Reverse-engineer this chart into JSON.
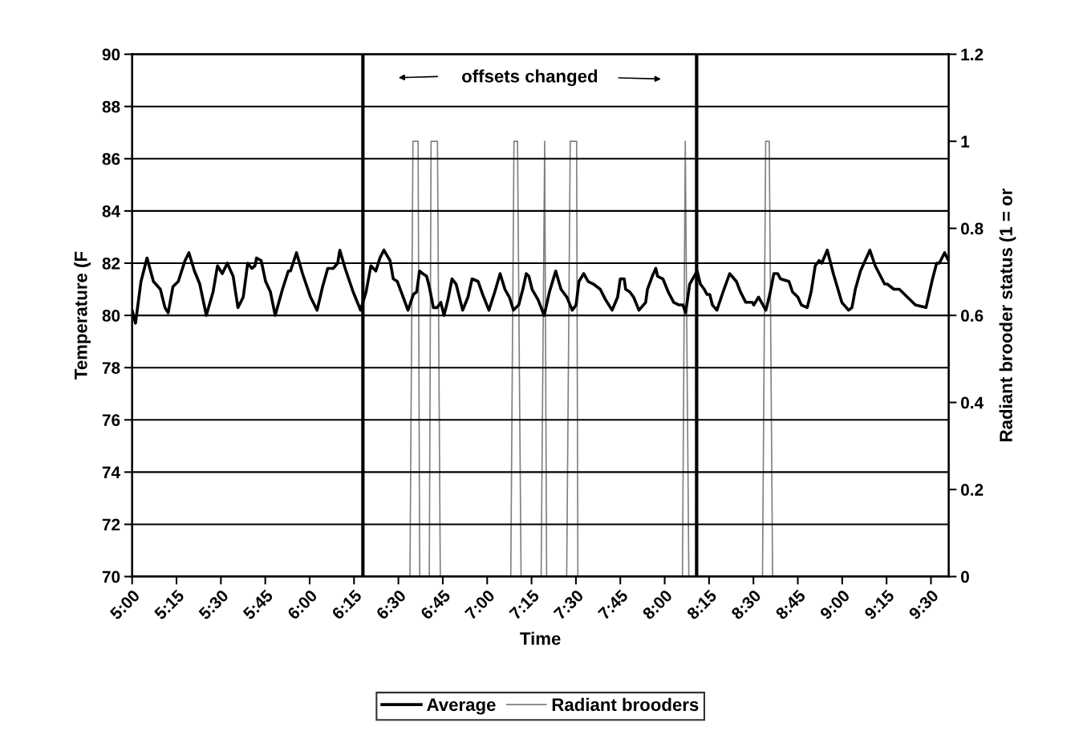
{
  "chart_data": {
    "type": "line",
    "xlabel": "Time",
    "ylabel": "Temperature (F",
    "y2label": "Radiant brooder status (1 = or",
    "annotations": [
      "offsets changed"
    ],
    "xlim": [
      5.0,
      9.6
    ],
    "ylim": [
      70,
      90
    ],
    "yticks": [
      70,
      72,
      74,
      76,
      78,
      80,
      82,
      84,
      86,
      88,
      90
    ],
    "y2lim": [
      0,
      1.2
    ],
    "y2ticks": [
      0,
      0.2,
      0.4,
      0.6,
      0.8,
      1,
      1.2
    ],
    "xticks": [
      {
        "value": 5.0,
        "label": "5:00"
      },
      {
        "value": 5.25,
        "label": "5:15"
      },
      {
        "value": 5.5,
        "label": "5:30"
      },
      {
        "value": 5.75,
        "label": "5:45"
      },
      {
        "value": 6.0,
        "label": "6:00"
      },
      {
        "value": 6.25,
        "label": "6:15"
      },
      {
        "value": 6.5,
        "label": "6:30"
      },
      {
        "value": 6.75,
        "label": "6:45"
      },
      {
        "value": 7.0,
        "label": "7:00"
      },
      {
        "value": 7.25,
        "label": "7:15"
      },
      {
        "value": 7.5,
        "label": "7:30"
      },
      {
        "value": 7.75,
        "label": "7:45"
      },
      {
        "value": 8.0,
        "label": "8:00"
      },
      {
        "value": 8.25,
        "label": "8:15"
      },
      {
        "value": 8.5,
        "label": "8:30"
      },
      {
        "value": 8.75,
        "label": "8:45"
      },
      {
        "value": 9.0,
        "label": "9:00"
      },
      {
        "value": 9.25,
        "label": "9:15"
      },
      {
        "value": 9.5,
        "label": "9:30"
      }
    ],
    "grid": "y",
    "legend": "bottom",
    "line_style": "solid",
    "ref_lines": [
      {
        "axis": "x",
        "value": 6.3,
        "color": "#000000"
      },
      {
        "axis": "x",
        "value": 8.18,
        "color": "#000000"
      }
    ],
    "series": [
      {
        "name": "Average",
        "color": "#000000",
        "x": [
          5.0,
          5.019,
          5.05,
          5.084,
          5.12,
          5.159,
          5.185,
          5.203,
          5.23,
          5.26,
          5.298,
          5.32,
          5.351,
          5.381,
          5.418,
          5.456,
          5.481,
          5.508,
          5.536,
          5.569,
          5.596,
          5.626,
          5.651,
          5.674,
          5.692,
          5.701,
          5.727,
          5.752,
          5.779,
          5.806,
          5.847,
          5.88,
          5.892,
          5.926,
          5.96,
          6.005,
          6.042,
          6.073,
          6.102,
          6.133,
          6.158,
          6.17,
          6.2,
          6.245,
          6.287,
          6.318,
          6.345,
          6.373,
          6.396,
          6.418,
          6.453,
          6.471,
          6.494,
          6.516,
          6.554,
          6.584,
          6.603,
          6.619,
          6.637,
          6.659,
          6.674,
          6.697,
          6.719,
          6.739,
          6.757,
          6.779,
          6.802,
          6.825,
          6.862,
          6.892,
          6.915,
          6.949,
          6.975,
          7.01,
          7.043,
          7.073,
          7.1,
          7.125,
          7.148,
          7.178,
          7.201,
          7.22,
          7.235,
          7.253,
          7.287,
          7.321,
          7.351,
          7.386,
          7.416,
          7.449,
          7.479,
          7.501,
          7.517,
          7.544,
          7.569,
          7.599,
          7.637,
          7.667,
          7.704,
          7.735,
          7.75,
          7.772,
          7.78,
          7.803,
          7.825,
          7.855,
          7.893,
          7.903,
          7.93,
          7.95,
          7.96,
          7.99,
          8.02,
          8.051,
          8.081,
          8.103,
          8.118,
          8.141,
          8.183,
          8.201,
          8.223,
          8.239,
          8.254,
          8.269,
          8.294,
          8.329,
          8.366,
          8.404,
          8.427,
          8.457,
          8.494,
          8.502,
          8.529,
          8.57,
          8.592,
          8.615,
          8.637,
          8.652,
          8.7,
          8.72,
          8.75,
          8.77,
          8.803,
          8.825,
          8.848,
          8.87,
          8.885,
          8.916,
          8.95,
          8.998,
          9.036,
          9.055,
          9.074,
          9.103,
          9.156,
          9.186,
          9.239,
          9.254,
          9.291,
          9.322,
          9.367,
          9.412,
          9.472,
          9.509,
          9.532,
          9.547,
          9.577,
          9.599
        ],
        "values": [
          80.2,
          79.7,
          81.3,
          82.2,
          81.3,
          81.0,
          80.3,
          80.1,
          81.1,
          81.3,
          82.1,
          82.4,
          81.7,
          81.2,
          80.0,
          80.9,
          81.9,
          81.6,
          82.0,
          81.5,
          80.3,
          80.7,
          82.0,
          81.8,
          81.9,
          82.2,
          82.1,
          81.3,
          80.9,
          80.0,
          81.0,
          81.7,
          81.7,
          82.4,
          81.6,
          80.7,
          80.2,
          81.1,
          81.8,
          81.8,
          82.0,
          82.5,
          81.8,
          80.9,
          80.2,
          80.9,
          81.9,
          81.7,
          82.2,
          82.5,
          82.1,
          81.4,
          81.3,
          80.9,
          80.2,
          80.8,
          80.9,
          81.7,
          81.6,
          81.5,
          81.1,
          80.3,
          80.3,
          80.5,
          80.0,
          80.6,
          81.4,
          81.2,
          80.2,
          80.7,
          81.4,
          81.3,
          80.8,
          80.2,
          80.9,
          81.6,
          81.0,
          80.7,
          80.2,
          80.4,
          81.0,
          81.6,
          81.5,
          81.0,
          80.6,
          80.0,
          80.9,
          81.7,
          81.0,
          80.7,
          80.2,
          80.4,
          81.3,
          81.6,
          81.3,
          81.2,
          81.0,
          80.6,
          80.2,
          80.7,
          81.4,
          81.4,
          81.0,
          80.9,
          80.7,
          80.2,
          80.5,
          81.0,
          81.5,
          81.8,
          81.5,
          81.4,
          80.9,
          80.5,
          80.4,
          80.4,
          80.1,
          81.2,
          81.7,
          81.2,
          81.0,
          80.8,
          80.8,
          80.4,
          80.2,
          80.9,
          81.6,
          81.3,
          80.9,
          80.5,
          80.5,
          80.4,
          80.7,
          80.2,
          80.8,
          81.6,
          81.6,
          81.4,
          81.3,
          80.9,
          80.7,
          80.4,
          80.3,
          80.9,
          81.9,
          82.1,
          82.0,
          82.5,
          81.6,
          80.5,
          80.2,
          80.3,
          81.0,
          81.7,
          82.5,
          81.9,
          81.2,
          81.2,
          81.0,
          81.0,
          80.7,
          80.4,
          80.3,
          81.4,
          82.0,
          82.0,
          82.4,
          82.1
        ]
      },
      {
        "name": "Radiant brooders",
        "color": "#808080",
        "axis": "y2",
        "x": [
          5.0,
          6.565,
          6.582,
          6.611,
          6.62,
          6.674,
          6.684,
          6.72,
          6.736,
          7.133,
          7.151,
          7.171,
          7.191,
          7.304,
          7.324,
          7.335,
          7.448,
          7.468,
          7.504,
          7.511,
          8.1,
          8.116,
          8.136,
          8.551,
          8.569,
          8.589,
          8.608,
          9.6
        ],
        "values": [
          0,
          0,
          1,
          1,
          0,
          0,
          1,
          1,
          0,
          0,
          1,
          1,
          0,
          0,
          1,
          0,
          0,
          1,
          1,
          0,
          0,
          1,
          0,
          0,
          1,
          1,
          0,
          0
        ]
      }
    ]
  }
}
